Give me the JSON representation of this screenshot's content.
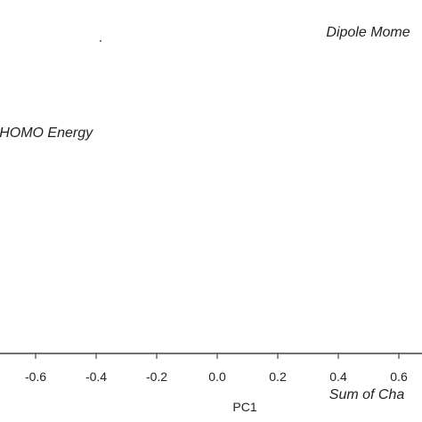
{
  "chart_data": {
    "type": "scatter",
    "title": "",
    "xlabel": "PC1",
    "ylabel": "",
    "xlim": [
      -0.75,
      0.7
    ],
    "x_ticks": [
      -0.6,
      -0.4,
      -0.2,
      0.0,
      0.2,
      0.4,
      0.6
    ],
    "x_tick_labels": [
      "-0.6",
      "-0.4",
      "-0.2",
      "0.0",
      "0.2",
      "0.4",
      "0.6"
    ],
    "grid": false,
    "annotations": [
      {
        "text": "Dipole Mome",
        "x": 0.36,
        "y": 0.78
      },
      {
        "text": "HOMO Energy",
        "x": -0.72,
        "y": 0.48
      },
      {
        "text": "Sum of Cha",
        "x": 0.37,
        "y": -0.3
      }
    ]
  }
}
